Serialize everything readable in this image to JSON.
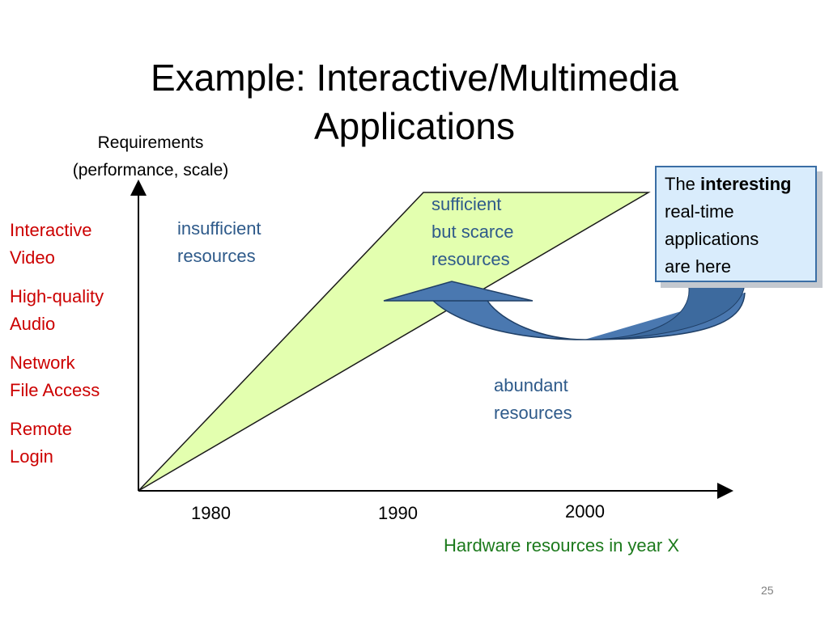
{
  "title": {
    "line1": "Example: Interactive/Multimedia",
    "line2": "Applications"
  },
  "y_axis": {
    "label_line1": "Requirements",
    "label_line2": "(performance, scale)"
  },
  "applications": [
    {
      "line1": "Interactive",
      "line2": "Video"
    },
    {
      "line1": "High-quality",
      "line2": "Audio"
    },
    {
      "line1": "Network",
      "line2": "File Access"
    },
    {
      "line1": "Remote",
      "line2": "Login"
    }
  ],
  "regions": {
    "insufficient": {
      "line1": "insufficient",
      "line2": "resources"
    },
    "sufficient": {
      "line1": "sufficient",
      "line2": "but scarce",
      "line3": "resources"
    },
    "abundant": {
      "line1": "abundant",
      "line2": "resources"
    }
  },
  "x_axis": {
    "years": [
      "1980",
      "1990",
      "2000"
    ],
    "label": "Hardware resources in year X"
  },
  "callout": {
    "prefix": "The ",
    "bold": "interesting",
    "line2": "real-time",
    "line3": "applications",
    "line4": "are here"
  },
  "colors": {
    "triangle_fill": "#e3ffaf",
    "triangle_stroke": "#1a1a1a",
    "arrow_fill": "#4a78b0",
    "arrow_stroke": "#1f3f66",
    "applications_text": "#cc0000",
    "region_text": "#2e5a8a",
    "x_label_text": "#1c7a1c",
    "callout_fill": "#d9ecfc"
  },
  "page_number": "25"
}
